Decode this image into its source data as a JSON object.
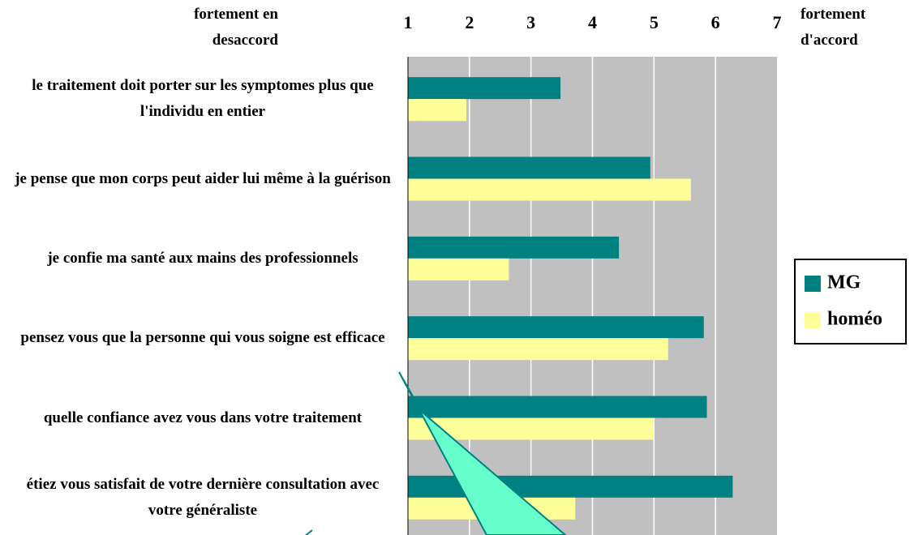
{
  "chart_data": {
    "type": "bar",
    "orientation": "horizontal",
    "annotations": [
      "fortement en desaccord",
      "fortement d'accord"
    ],
    "categories": [
      "le traitement doit porter sur les symptomes plus que l'individu en entier",
      "je pense que mon corps peut aider lui même à la guérison",
      "je confie ma santé aux mains des professionnels",
      "pensez vous que la personne qui vous soigne est efficace",
      "quelle confiance avez vous dans votre traitement",
      "étiez vous satisfait de votre dernière consultation avec votre généraliste"
    ],
    "series": [
      {
        "name": "MG",
        "color": "#008080",
        "values": [
          3.48,
          4.94,
          4.43,
          5.81,
          5.86,
          6.28
        ]
      },
      {
        "name": "homéo",
        "color": "#ffff99",
        "values": [
          1.95,
          5.6,
          2.64,
          5.23,
          4.99,
          3.72
        ]
      }
    ],
    "xlim": [
      1,
      7
    ],
    "xticks": [
      1,
      2,
      3,
      4,
      5,
      6,
      7
    ],
    "grid": true,
    "legend": "right"
  }
}
